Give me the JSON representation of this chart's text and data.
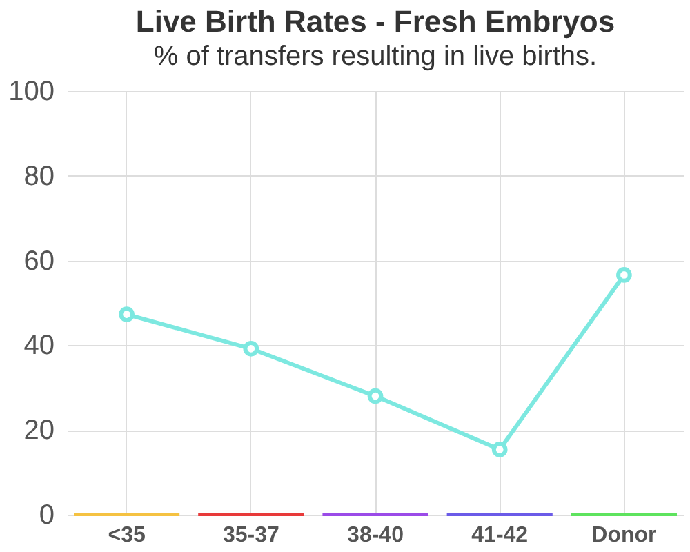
{
  "chart_data": {
    "type": "line",
    "title": "Live Birth Rates - Fresh Embryos",
    "subtitle": "% of transfers resulting in live births.",
    "categories": [
      "<35",
      "35-37",
      "38-40",
      "41-42",
      "Donor"
    ],
    "series": [
      {
        "color": "#7de8e0",
        "values": [
          47.3,
          39.2,
          28,
          15.4,
          56.6
        ]
      },
      {
        "type": "bar",
        "colors": [
          "#f5c242",
          "#e83a3a",
          "#9b4be8",
          "#6b5be8",
          "#5ee35e"
        ],
        "values": [
          0,
          0,
          0,
          0,
          0
        ]
      }
    ],
    "ylim": [
      0,
      100
    ],
    "yticks": [
      0,
      20,
      40,
      60,
      80,
      100
    ],
    "grid": true,
    "marker": "circle",
    "line_style": "solid"
  }
}
